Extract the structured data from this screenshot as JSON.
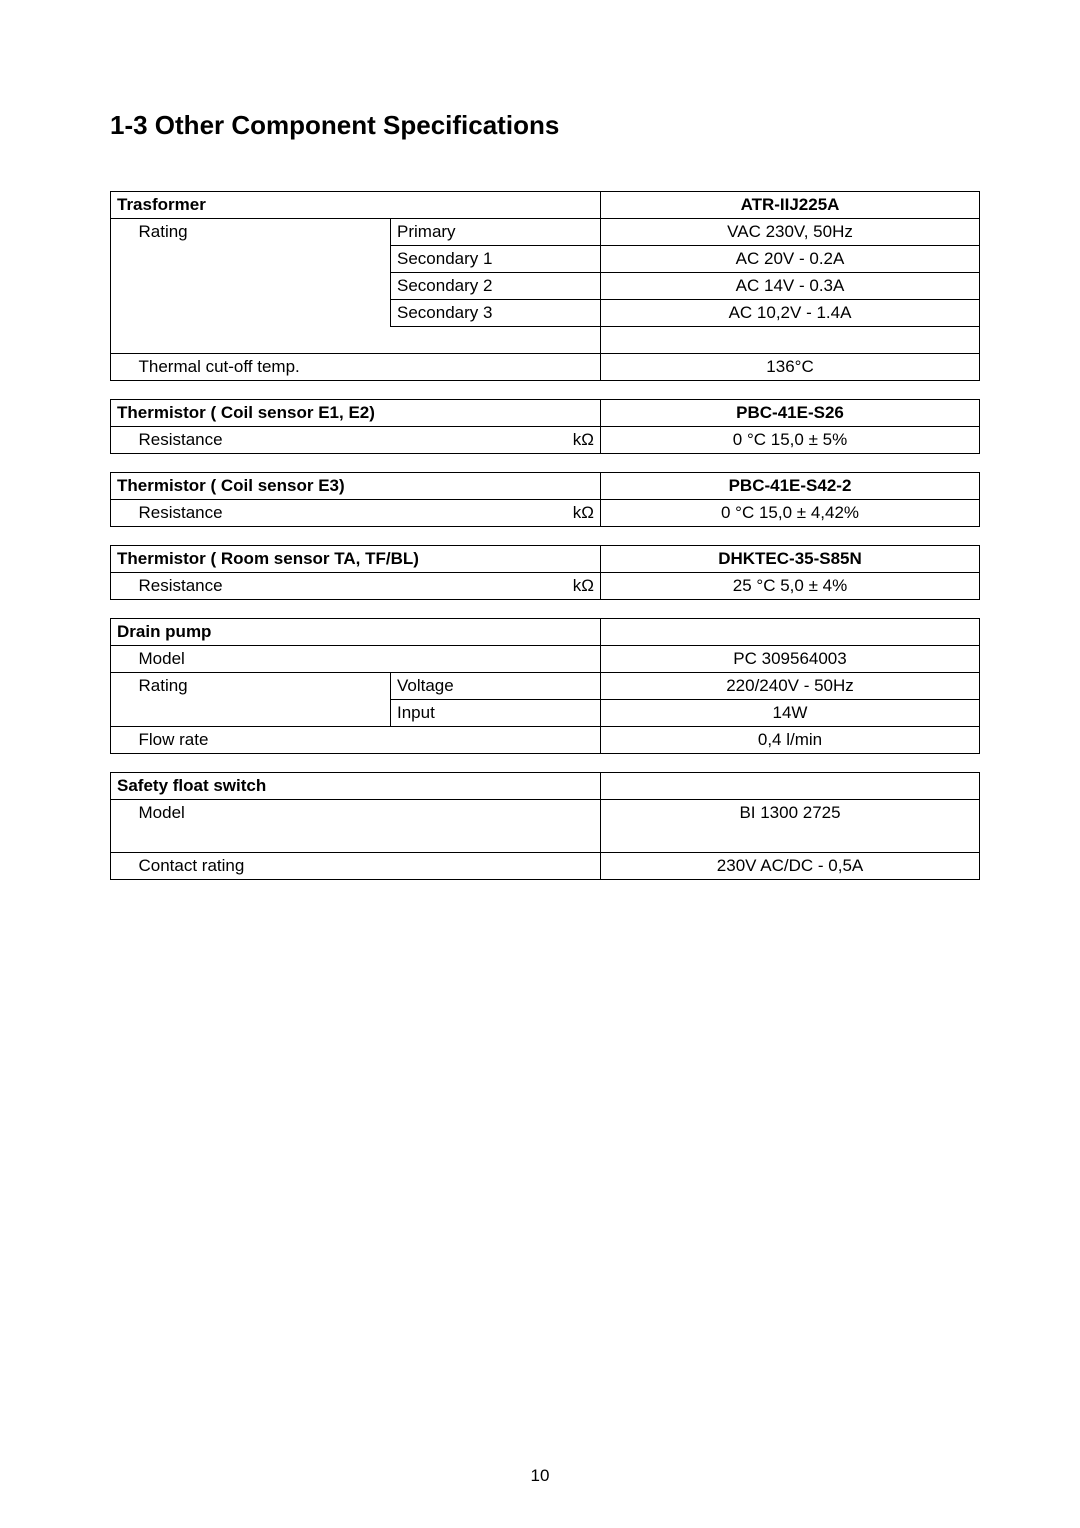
{
  "page": {
    "title": "1-3 Other Component Specifications",
    "number": "10"
  },
  "transformer": {
    "header": "Trasformer",
    "model": "ATR-IIJ225A",
    "rating_label": "Rating",
    "rows": [
      {
        "label": "Primary",
        "value": "VAC 230V, 50Hz"
      },
      {
        "label": "Secondary 1",
        "value": "AC 20V - 0.2A"
      },
      {
        "label": "Secondary 2",
        "value": "AC 14V - 0.3A"
      },
      {
        "label": "Secondary 3",
        "value": "AC 10,2V - 1.4A"
      }
    ],
    "thermal_label": "Thermal cut-off temp.",
    "thermal_value": "136°C"
  },
  "thermistor_e1e2": {
    "header": "Thermistor ( Coil sensor E1, E2)",
    "model": "PBC-41E-S26",
    "row_label": "Resistance",
    "row_unit": "kΩ",
    "row_value": "0 °C  15,0 ± 5%"
  },
  "thermistor_e3": {
    "header": "Thermistor ( Coil sensor E3)",
    "model": "PBC-41E-S42-2",
    "row_label": "Resistance",
    "row_unit": "kΩ",
    "row_value": "0 °C  15,0 ± 4,42%"
  },
  "thermistor_room": {
    "header": "Thermistor ( Room sensor TA, TF/BL)",
    "model": "DHKTEC-35-S85N",
    "row_label": "Resistance",
    "row_unit": "kΩ",
    "row_value": "25 °C  5,0 ± 4%"
  },
  "drain_pump": {
    "header": "Drain pump",
    "model_label": "Model",
    "model_value": "PC 309564003",
    "rating_label": "Rating",
    "voltage_label": "Voltage",
    "voltage_value": "220/240V - 50Hz",
    "input_label": "Input",
    "input_value": "14W",
    "flow_label": "Flow rate",
    "flow_value": "0,4 l/min"
  },
  "float_switch": {
    "header": "Safety float switch",
    "model_label": "Model",
    "model_value": "BI 1300 2725",
    "contact_label": "Contact rating",
    "contact_value": "230V AC/DC - 0,5A"
  }
}
